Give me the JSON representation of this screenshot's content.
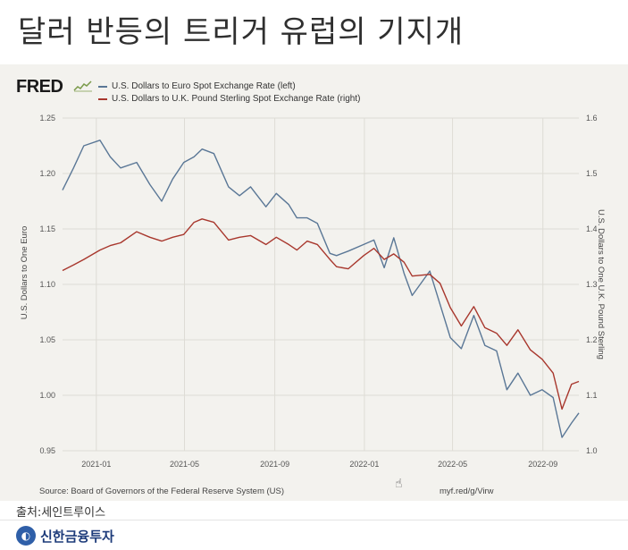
{
  "slide": {
    "title": "달러 반등의 트리거 유럽의 기지개",
    "caption": "출처:세인트루이스",
    "brand": "신한금융투자",
    "brand_logo_icon": "shinhan-logo-icon"
  },
  "fred": {
    "logo": "FRED",
    "source": "Source: Board of Governors of the Federal Reserve System (US)",
    "url": "myf.red/g/Virw"
  },
  "colors": {
    "eur": "#5a7796",
    "gbp": "#a8372d",
    "panel": "#f3f2ee",
    "grid": "#dedcd5"
  },
  "chart_data": {
    "type": "line",
    "x_tick_labels": [
      "2021-01",
      "2021-05",
      "2021-09",
      "2022-01",
      "2022-05",
      "2022-09"
    ],
    "x_range": [
      "2020-11-16",
      "2022-10-20"
    ],
    "left_axis": {
      "label": "U.S. Dollars to One Euro",
      "range": [
        0.95,
        1.25
      ],
      "ticks": [
        "1.25",
        "1.20",
        "1.15",
        "1.10",
        "1.05",
        "1.00",
        "0.95"
      ]
    },
    "right_axis": {
      "label": "U.S. Dollars to One U.K. Pound Sterling",
      "range": [
        1.0,
        1.6
      ],
      "ticks": [
        "1.6",
        "1.5",
        "1.4",
        "1.3",
        "1.2",
        "1.1",
        "1.0"
      ]
    },
    "series": [
      {
        "name": "U.S. Dollars to Euro Spot Exchange Rate (left)",
        "axis": "left",
        "x": [
          "2020-11-16",
          "2020-12-01",
          "2020-12-15",
          "2021-01-06",
          "2021-01-20",
          "2021-02-03",
          "2021-02-25",
          "2021-03-15",
          "2021-03-31",
          "2021-04-15",
          "2021-04-30",
          "2021-05-14",
          "2021-05-25",
          "2021-06-10",
          "2021-06-30",
          "2021-07-15",
          "2021-07-30",
          "2021-08-20",
          "2021-09-03",
          "2021-09-20",
          "2021-10-01",
          "2021-10-15",
          "2021-10-29",
          "2021-11-15",
          "2021-11-24",
          "2021-12-10",
          "2021-12-31",
          "2022-01-14",
          "2022-01-28",
          "2022-02-10",
          "2022-02-24",
          "2022-03-07",
          "2022-03-31",
          "2022-04-14",
          "2022-04-28",
          "2022-05-13",
          "2022-05-30",
          "2022-06-14",
          "2022-06-30",
          "2022-07-14",
          "2022-07-29",
          "2022-08-15",
          "2022-08-31",
          "2022-09-15",
          "2022-09-27",
          "2022-10-10",
          "2022-10-20"
        ],
        "values": [
          1.185,
          1.205,
          1.225,
          1.23,
          1.215,
          1.205,
          1.21,
          1.19,
          1.175,
          1.195,
          1.21,
          1.215,
          1.222,
          1.218,
          1.188,
          1.18,
          1.188,
          1.17,
          1.182,
          1.172,
          1.16,
          1.16,
          1.155,
          1.128,
          1.126,
          1.13,
          1.136,
          1.14,
          1.115,
          1.142,
          1.11,
          1.09,
          1.112,
          1.082,
          1.052,
          1.042,
          1.072,
          1.045,
          1.04,
          1.005,
          1.02,
          1.0,
          1.005,
          0.998,
          0.962,
          0.975,
          0.984
        ]
      },
      {
        "name": "U.S. Dollars to U.K. Pound Sterling Spot Exchange Rate (right)",
        "axis": "right",
        "x": [
          "2020-11-16",
          "2020-12-01",
          "2020-12-15",
          "2021-01-06",
          "2021-01-20",
          "2021-02-03",
          "2021-02-25",
          "2021-03-15",
          "2021-03-31",
          "2021-04-15",
          "2021-04-30",
          "2021-05-14",
          "2021-05-25",
          "2021-06-10",
          "2021-06-30",
          "2021-07-15",
          "2021-07-30",
          "2021-08-20",
          "2021-09-03",
          "2021-09-20",
          "2021-10-01",
          "2021-10-15",
          "2021-10-29",
          "2021-11-15",
          "2021-11-24",
          "2021-12-10",
          "2021-12-31",
          "2022-01-14",
          "2022-01-28",
          "2022-02-10",
          "2022-02-24",
          "2022-03-07",
          "2022-03-31",
          "2022-04-14",
          "2022-04-28",
          "2022-05-13",
          "2022-05-30",
          "2022-06-14",
          "2022-06-30",
          "2022-07-14",
          "2022-07-29",
          "2022-08-15",
          "2022-08-31",
          "2022-09-15",
          "2022-09-27",
          "2022-10-10",
          "2022-10-20"
        ],
        "values": [
          1.325,
          1.335,
          1.345,
          1.362,
          1.37,
          1.375,
          1.395,
          1.385,
          1.378,
          1.385,
          1.39,
          1.412,
          1.418,
          1.412,
          1.38,
          1.385,
          1.388,
          1.372,
          1.385,
          1.372,
          1.362,
          1.378,
          1.372,
          1.345,
          1.332,
          1.328,
          1.352,
          1.365,
          1.345,
          1.355,
          1.34,
          1.315,
          1.318,
          1.302,
          1.258,
          1.225,
          1.26,
          1.222,
          1.212,
          1.19,
          1.218,
          1.182,
          1.165,
          1.14,
          1.075,
          1.12,
          1.125
        ]
      }
    ]
  }
}
